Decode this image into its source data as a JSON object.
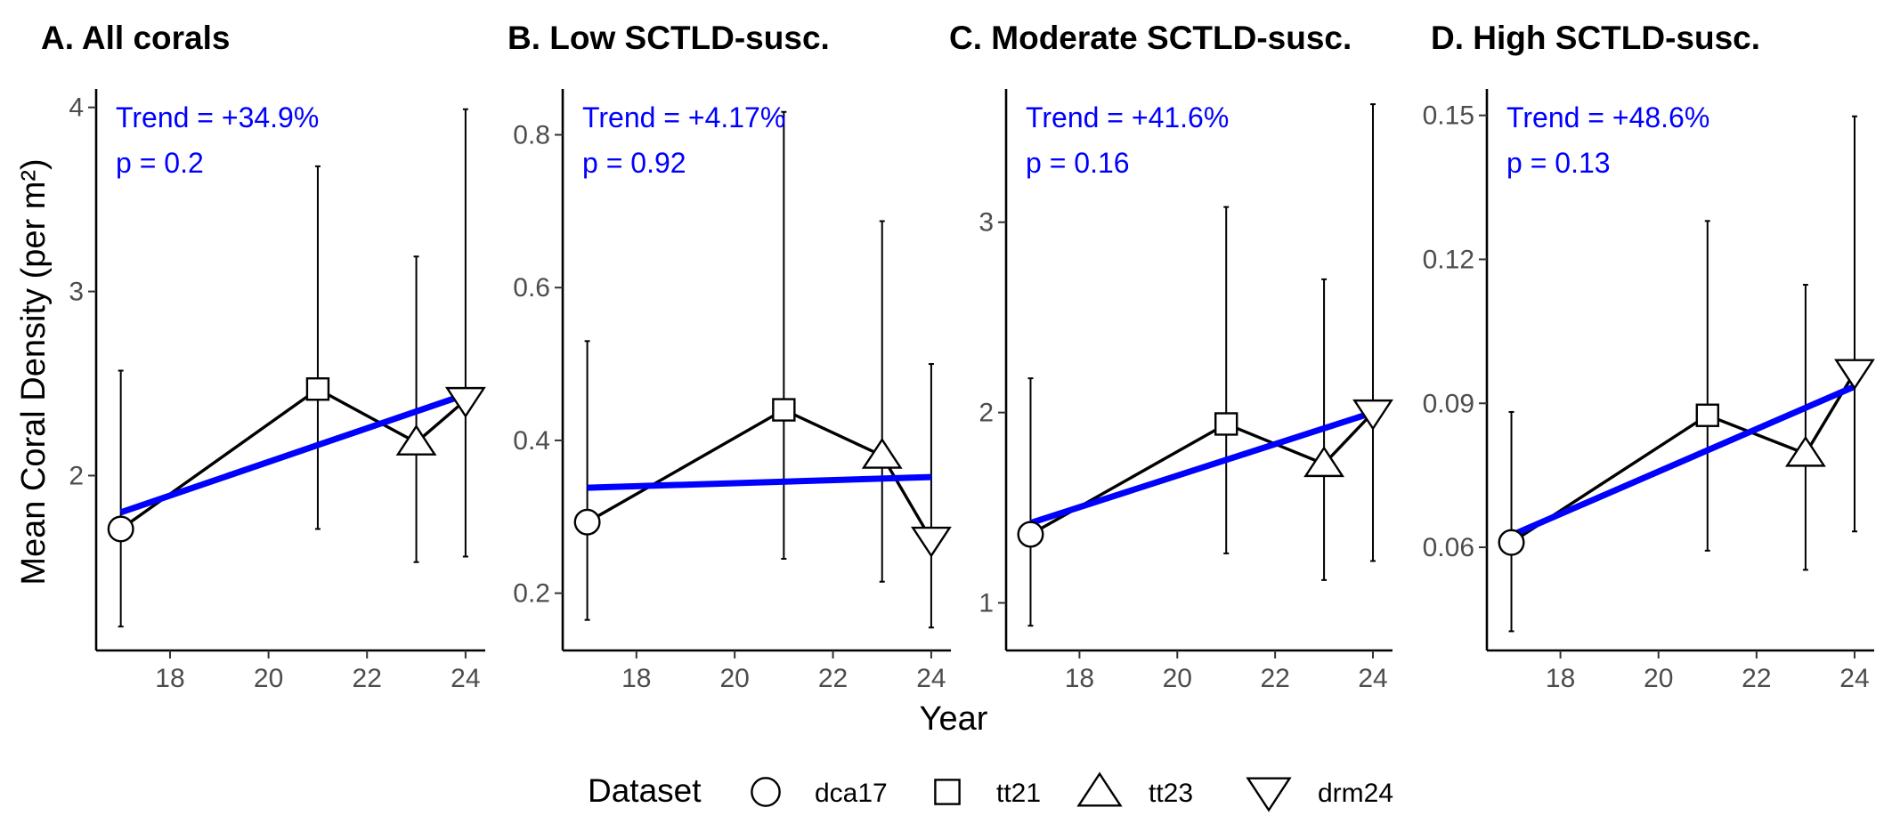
{
  "figure": {
    "xlabel": "Year",
    "ylabel": "Mean Coral Density (per m²)",
    "legend": {
      "title": "Dataset",
      "items": [
        {
          "label": "dca17",
          "shape": "circle"
        },
        {
          "label": "tt21",
          "shape": "square"
        },
        {
          "label": "tt23",
          "shape": "triangle-up"
        },
        {
          "label": "drm24",
          "shape": "triangle-down"
        }
      ],
      "placement": "bottom"
    }
  },
  "colors": {
    "trend": "#0000ff",
    "series": "#000000",
    "tick_text": "#4d4d4d"
  },
  "chart_data": [
    {
      "type": "line",
      "title": "A. All corals",
      "trend_text": "Trend = +34.9%",
      "p_text": "p = 0.2",
      "x": [
        17,
        21,
        23,
        24
      ],
      "dataset": [
        "dca17",
        "tt21",
        "tt23",
        "drm24"
      ],
      "y": [
        1.71,
        2.47,
        2.18,
        2.41
      ],
      "y_lower": [
        1.18,
        1.71,
        1.53,
        1.56
      ],
      "y_upper": [
        2.57,
        3.68,
        3.19,
        3.99
      ],
      "trend_line": {
        "x": [
          17,
          24
        ],
        "y": [
          1.8,
          2.44
        ]
      },
      "xlim": [
        16.5,
        24.4
      ],
      "ylim": [
        1.05,
        4.1
      ],
      "x_ticks": [
        18,
        20,
        22,
        24
      ],
      "y_ticks": [
        2,
        3,
        4
      ],
      "y_tick_labels": [
        "2",
        "3",
        "4"
      ]
    },
    {
      "type": "line",
      "title": "B. Low SCTLD-susc.",
      "trend_text": "Trend = +4.17%",
      "p_text": "p = 0.92",
      "x": [
        17,
        21,
        23,
        24
      ],
      "dataset": [
        "dca17",
        "tt21",
        "tt23",
        "drm24"
      ],
      "y": [
        0.293,
        0.44,
        0.38,
        0.27
      ],
      "y_lower": [
        0.165,
        0.245,
        0.215,
        0.155
      ],
      "y_upper": [
        0.53,
        0.83,
        0.687,
        0.5
      ],
      "trend_line": {
        "x": [
          17,
          24
        ],
        "y": [
          0.338,
          0.352
        ]
      },
      "xlim": [
        16.5,
        24.4
      ],
      "ylim": [
        0.125,
        0.86
      ],
      "x_ticks": [
        18,
        20,
        22,
        24
      ],
      "y_ticks": [
        0.2,
        0.4,
        0.6,
        0.8
      ],
      "y_tick_labels": [
        "0.2",
        "0.4",
        "0.6",
        "0.8"
      ]
    },
    {
      "type": "line",
      "title": "C. Moderate SCTLD-susc.",
      "trend_text": "Trend = +41.6%",
      "p_text": "p = 0.16",
      "x": [
        17,
        21,
        23,
        24
      ],
      "dataset": [
        "dca17",
        "tt21",
        "tt23",
        "drm24"
      ],
      "y": [
        1.36,
        1.94,
        1.73,
        2.0
      ],
      "y_lower": [
        0.88,
        1.26,
        1.12,
        1.22
      ],
      "y_upper": [
        2.18,
        3.08,
        2.7,
        3.62
      ],
      "trend_line": {
        "x": [
          17,
          24
        ],
        "y": [
          1.42,
          2.0
        ]
      },
      "xlim": [
        16.5,
        24.4
      ],
      "ylim": [
        0.75,
        3.7
      ],
      "x_ticks": [
        18,
        20,
        22,
        24
      ],
      "y_ticks": [
        1,
        2,
        3
      ],
      "y_tick_labels": [
        "1",
        "2",
        "3"
      ]
    },
    {
      "type": "line",
      "title": "D. High SCTLD-susc.",
      "trend_text": "Trend = +48.6%",
      "p_text": "p = 0.13",
      "x": [
        17,
        21,
        23,
        24
      ],
      "dataset": [
        "dca17",
        "tt21",
        "tt23",
        "drm24"
      ],
      "y": [
        0.061,
        0.0875,
        0.0795,
        0.0965
      ],
      "y_lower": [
        0.0425,
        0.0593,
        0.0553,
        0.0633
      ],
      "y_upper": [
        0.0882,
        0.128,
        0.1147,
        0.1498
      ],
      "trend_line": {
        "x": [
          17,
          24
        ],
        "y": [
          0.0625,
          0.0935
        ]
      },
      "xlim": [
        16.5,
        24.4
      ],
      "ylim": [
        0.0385,
        0.1555
      ],
      "x_ticks": [
        18,
        20,
        22,
        24
      ],
      "y_ticks": [
        0.06,
        0.09,
        0.12,
        0.15
      ],
      "y_tick_labels": [
        "0.06",
        "0.09",
        "0.12",
        "0.15"
      ]
    }
  ]
}
